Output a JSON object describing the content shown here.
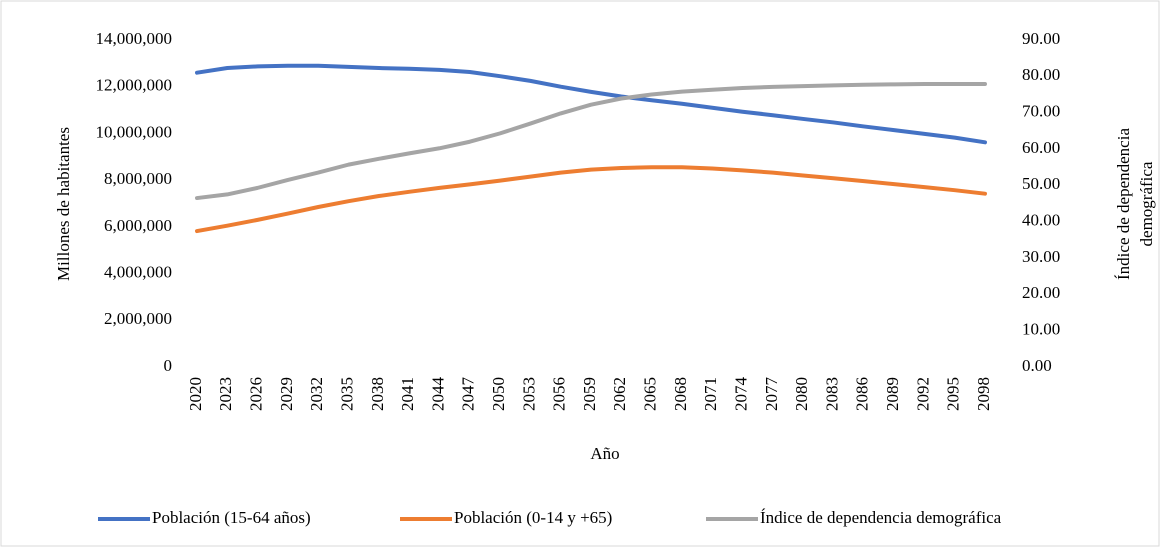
{
  "chart_data": {
    "type": "line",
    "xlabel": "Año",
    "ylabel": "Millones de habitantes",
    "y2label": [
      "Índice de dependencia",
      "demográfica"
    ],
    "categories": [
      "2020",
      "2023",
      "2026",
      "2029",
      "2032",
      "2035",
      "2038",
      "2041",
      "2044",
      "2047",
      "2050",
      "2053",
      "2056",
      "2059",
      "2062",
      "2065",
      "2068",
      "2071",
      "2074",
      "2077",
      "2080",
      "2083",
      "2086",
      "2089",
      "2092",
      "2095",
      "2098"
    ],
    "series": [
      {
        "name": "Población (15-64 años)",
        "color": "#4472c4",
        "values": [
          12600000,
          12800000,
          12870000,
          12900000,
          12900000,
          12850000,
          12800000,
          12770000,
          12720000,
          12630000,
          12450000,
          12250000,
          12000000,
          11780000,
          11580000,
          11420000,
          11270000,
          11100000,
          10930000,
          10780000,
          10620000,
          10470000,
          10300000,
          10140000,
          9980000,
          9820000,
          9620000
        ]
      },
      {
        "name": "Población (0-14 y +65)",
        "color": "#ed7d31",
        "values": [
          5820000,
          6050000,
          6300000,
          6570000,
          6850000,
          7100000,
          7320000,
          7500000,
          7670000,
          7820000,
          7980000,
          8150000,
          8320000,
          8450000,
          8520000,
          8550000,
          8550000,
          8500000,
          8420000,
          8320000,
          8200000,
          8080000,
          7960000,
          7830000,
          7700000,
          7570000,
          7420000
        ]
      },
      {
        "name": "Índice de dependencia demográfica",
        "color": "#a5a5a5",
        "axis": "y2",
        "values": [
          46.5,
          47.5,
          49.3,
          51.5,
          53.5,
          55.7,
          57.3,
          58.8,
          60.2,
          62,
          64.3,
          67,
          69.8,
          72.2,
          73.9,
          75,
          75.8,
          76.3,
          76.8,
          77.1,
          77.3,
          77.5,
          77.7,
          77.8,
          77.9,
          77.9,
          77.9
        ]
      }
    ],
    "ylim": [
      0,
      14000000
    ],
    "yticks": [
      0,
      {
        "value": 2000000,
        "label": "2,000,000"
      },
      {
        "value": 4000000,
        "label": "4,000,000"
      },
      {
        "value": 6000000,
        "label": "6,000,000"
      },
      {
        "value": 8000000,
        "label": "8,000,000"
      },
      {
        "value": 10000000,
        "label": "10,000,000"
      },
      {
        "value": 12000000,
        "label": "12,000,000"
      },
      {
        "value": 14000000,
        "label": "14,000,000"
      }
    ],
    "y2lim": [
      0,
      90
    ],
    "y2ticks": [
      {
        "value": 0,
        "label": "0.00"
      },
      {
        "value": 10,
        "label": "10.00"
      },
      {
        "value": 20,
        "label": "20.00"
      },
      {
        "value": 30,
        "label": "30.00"
      },
      {
        "value": 40,
        "label": "40.00"
      },
      {
        "value": 50,
        "label": "50.00"
      },
      {
        "value": 60,
        "label": "60.00"
      },
      {
        "value": 70,
        "label": "70.00"
      },
      {
        "value": 80,
        "label": "80.00"
      },
      {
        "value": 90,
        "label": "90.00"
      }
    ],
    "legend": "bottom"
  }
}
